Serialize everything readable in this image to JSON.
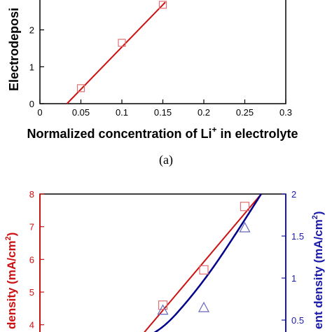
{
  "chart_data": [
    {
      "type": "scatter",
      "panel_label": "(a)",
      "xlabel": "Normalized concentration of Li",
      "xlabel_superscript": "+",
      "xlabel_suffix": " in electrolyte",
      "ylabel": "Electrodeposi",
      "xlim": [
        0,
        0.3
      ],
      "ylim": [
        0,
        3
      ],
      "xticks": [
        "0",
        "0.05",
        "0.1",
        "0.15",
        "0.2",
        "0.25",
        "0.3"
      ],
      "xtick_values": [
        0,
        0.05,
        0.1,
        0.15,
        0.2,
        0.25,
        0.3
      ],
      "yticks": [
        "0",
        "1",
        "2"
      ],
      "ytick_values": [
        0,
        1,
        2
      ],
      "series": [
        {
          "marker": "square",
          "color": "#e07070",
          "x": [
            0.05,
            0.1,
            0.15
          ],
          "y": [
            0.42,
            1.65,
            2.68
          ]
        }
      ],
      "fit_line": {
        "color": "#cc1111",
        "x": [
          0.033,
          0.153
        ],
        "y": [
          0,
          2.75
        ]
      }
    },
    {
      "type": "scatter",
      "ylabel_left": "density (mA/cm",
      "ylabel_left_superscript": "2",
      "ylabel_left_suffix": ")",
      "ylabel_right": "ent density (mA/cm",
      "ylabel_right_superscript": "2",
      "ylabel_right_suffix": ")",
      "xlim": [
        0,
        0.3
      ],
      "ylim_left": [
        3.5,
        8
      ],
      "ylim_right": [
        0.25,
        2
      ],
      "yticks_left": [
        "4",
        "5",
        "6",
        "7",
        "8"
      ],
      "ytick_values_left": [
        4,
        5,
        6,
        7,
        8
      ],
      "yticks_right": [
        "0.5",
        "1",
        "1.5",
        "2"
      ],
      "ytick_values_right": [
        0.5,
        1,
        1.5,
        2
      ],
      "series": [
        {
          "axis": "left",
          "marker": "square",
          "color": "#e07070",
          "x": [
            0.15,
            0.2,
            0.25
          ],
          "y": [
            4.6,
            5.68,
            7.62
          ]
        },
        {
          "axis": "right",
          "marker": "triangle",
          "color": "#6666bb",
          "x": [
            0.15,
            0.2,
            0.25
          ],
          "y": [
            0.62,
            0.65,
            1.6
          ]
        }
      ],
      "fit_line_left": {
        "color": "#cc1111",
        "x": [
          0.12,
          0.27
        ],
        "y": [
          3.55,
          8.0
        ]
      },
      "fit_curve_right": {
        "color": "#00008b",
        "x": [
          0.12,
          0.15,
          0.18,
          0.21,
          0.24,
          0.27
        ],
        "y": [
          0.25,
          0.4,
          0.72,
          1.1,
          1.54,
          2.0
        ]
      }
    }
  ]
}
